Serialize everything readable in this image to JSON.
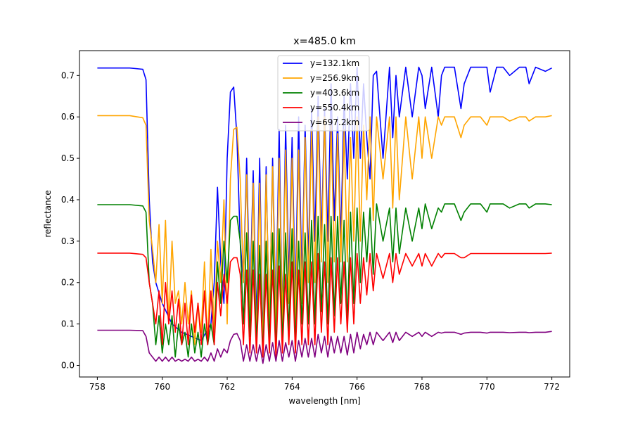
{
  "chart_data": {
    "type": "line",
    "title": "x=485.0 km",
    "xlabel": "wavelength [nm]",
    "ylabel": "reflectance",
    "xlim": [
      757.45,
      772.55
    ],
    "ylim": [
      -0.028,
      0.76
    ],
    "xticks": [
      758,
      760,
      762,
      764,
      766,
      768,
      770,
      772
    ],
    "yticks": [
      0.0,
      0.1,
      0.2,
      0.3,
      0.4,
      0.5,
      0.6,
      0.7
    ],
    "xtick_labels": [
      "758",
      "760",
      "762",
      "764",
      "766",
      "768",
      "770",
      "772"
    ],
    "ytick_labels": [
      "0.0",
      "0.1",
      "0.2",
      "0.3",
      "0.4",
      "0.5",
      "0.6",
      "0.7"
    ],
    "grid": false,
    "legend_position": "top-center",
    "series": [
      {
        "name": "y=132.1km",
        "color": "#0000ff",
        "x": [
          758.0,
          759.0,
          759.4,
          759.5,
          759.6,
          759.7,
          759.8,
          760.0,
          760.3,
          760.6,
          760.9,
          761.2,
          761.5,
          761.6,
          761.7,
          761.8,
          761.9,
          762.0,
          762.1,
          762.2,
          762.3,
          762.4,
          762.5,
          762.6,
          762.7,
          762.8,
          762.9,
          763.0,
          763.1,
          763.2,
          763.3,
          763.4,
          763.5,
          763.6,
          763.7,
          763.8,
          763.9,
          764.0,
          764.1,
          764.2,
          764.3,
          764.4,
          764.5,
          764.6,
          764.7,
          764.8,
          764.9,
          765.0,
          765.1,
          765.2,
          765.3,
          765.4,
          765.5,
          765.6,
          765.7,
          765.8,
          765.9,
          766.0,
          766.1,
          766.2,
          766.3,
          766.4,
          766.5,
          766.6,
          766.8,
          767.0,
          767.1,
          767.2,
          767.3,
          767.5,
          767.7,
          767.9,
          768.0,
          768.1,
          768.3,
          768.5,
          768.6,
          768.7,
          769.0,
          769.2,
          769.3,
          769.5,
          769.8,
          770.0,
          770.1,
          770.3,
          770.5,
          770.7,
          771.0,
          771.2,
          771.3,
          771.5,
          771.8,
          772.0
        ],
        "values": [
          0.718,
          0.718,
          0.715,
          0.69,
          0.4,
          0.25,
          0.2,
          0.15,
          0.1,
          0.08,
          0.07,
          0.06,
          0.1,
          0.2,
          0.43,
          0.25,
          0.15,
          0.5,
          0.66,
          0.672,
          0.55,
          0.3,
          0.2,
          0.5,
          0.15,
          0.47,
          0.1,
          0.5,
          0.05,
          0.48,
          0.08,
          0.5,
          0.12,
          0.57,
          0.1,
          0.58,
          0.2,
          0.55,
          0.15,
          0.6,
          0.2,
          0.58,
          0.25,
          0.62,
          0.3,
          0.65,
          0.3,
          0.62,
          0.3,
          0.68,
          0.35,
          0.6,
          0.3,
          0.65,
          0.45,
          0.68,
          0.5,
          0.72,
          0.5,
          0.68,
          0.55,
          0.45,
          0.7,
          0.71,
          0.5,
          0.72,
          0.55,
          0.7,
          0.6,
          0.72,
          0.6,
          0.72,
          0.7,
          0.62,
          0.72,
          0.6,
          0.7,
          0.72,
          0.72,
          0.62,
          0.68,
          0.72,
          0.72,
          0.72,
          0.66,
          0.72,
          0.72,
          0.7,
          0.72,
          0.72,
          0.68,
          0.72,
          0.71,
          0.718
        ]
      },
      {
        "name": "y=256.9km",
        "color": "#ffa500",
        "x": [
          758.0,
          759.0,
          759.4,
          759.5,
          759.6,
          759.7,
          759.8,
          759.9,
          760.0,
          760.1,
          760.2,
          760.3,
          760.4,
          760.5,
          760.6,
          760.7,
          760.8,
          760.9,
          761.0,
          761.1,
          761.2,
          761.3,
          761.4,
          761.5,
          761.6,
          761.7,
          761.8,
          761.9,
          762.0,
          762.1,
          762.2,
          762.3,
          762.4,
          762.5,
          762.6,
          762.7,
          762.8,
          762.9,
          763.0,
          763.1,
          763.2,
          763.3,
          763.4,
          763.5,
          763.6,
          763.7,
          763.8,
          763.9,
          764.0,
          764.1,
          764.2,
          764.3,
          764.4,
          764.5,
          764.6,
          764.7,
          764.8,
          764.9,
          765.0,
          765.1,
          765.2,
          765.3,
          765.4,
          765.5,
          765.6,
          765.7,
          765.8,
          765.9,
          766.0,
          766.1,
          766.2,
          766.3,
          766.4,
          766.5,
          766.6,
          766.8,
          767.0,
          767.1,
          767.2,
          767.3,
          767.5,
          767.7,
          767.9,
          768.0,
          768.1,
          768.3,
          768.5,
          768.6,
          768.7,
          769.0,
          769.2,
          769.3,
          769.5,
          769.8,
          770.0,
          770.1,
          770.3,
          770.5,
          770.7,
          771.0,
          771.2,
          771.3,
          771.5,
          771.8,
          772.0
        ],
        "values": [
          0.603,
          0.603,
          0.598,
          0.58,
          0.35,
          0.28,
          0.2,
          0.34,
          0.15,
          0.35,
          0.1,
          0.3,
          0.15,
          0.18,
          0.1,
          0.2,
          0.1,
          0.18,
          0.05,
          0.15,
          0.08,
          0.25,
          0.05,
          0.28,
          0.08,
          0.3,
          0.2,
          0.4,
          0.1,
          0.45,
          0.57,
          0.575,
          0.45,
          0.2,
          0.46,
          0.1,
          0.44,
          0.05,
          0.44,
          0.03,
          0.46,
          0.1,
          0.48,
          0.08,
          0.5,
          0.1,
          0.52,
          0.15,
          0.5,
          0.1,
          0.52,
          0.15,
          0.55,
          0.2,
          0.57,
          0.2,
          0.6,
          0.25,
          0.6,
          0.2,
          0.58,
          0.25,
          0.56,
          0.25,
          0.57,
          0.25,
          0.55,
          0.3,
          0.6,
          0.3,
          0.58,
          0.4,
          0.6,
          0.35,
          0.6,
          0.45,
          0.6,
          0.38,
          0.6,
          0.4,
          0.6,
          0.45,
          0.6,
          0.5,
          0.6,
          0.5,
          0.6,
          0.58,
          0.6,
          0.6,
          0.55,
          0.58,
          0.6,
          0.6,
          0.58,
          0.6,
          0.6,
          0.6,
          0.59,
          0.6,
          0.6,
          0.59,
          0.6,
          0.6,
          0.603
        ]
      },
      {
        "name": "y=403.6km",
        "color": "#008000",
        "x": [
          758.0,
          759.0,
          759.4,
          759.5,
          759.6,
          759.7,
          759.8,
          759.9,
          760.0,
          760.1,
          760.2,
          760.3,
          760.4,
          760.5,
          760.6,
          760.7,
          760.8,
          760.9,
          761.0,
          761.1,
          761.2,
          761.3,
          761.4,
          761.5,
          761.6,
          761.7,
          761.8,
          761.9,
          762.0,
          762.1,
          762.2,
          762.3,
          762.4,
          762.5,
          762.6,
          762.7,
          762.8,
          762.9,
          763.0,
          763.1,
          763.2,
          763.3,
          763.4,
          763.5,
          763.6,
          763.7,
          763.8,
          763.9,
          764.0,
          764.1,
          764.2,
          764.3,
          764.4,
          764.5,
          764.6,
          764.7,
          764.8,
          764.9,
          765.0,
          765.1,
          765.2,
          765.3,
          765.4,
          765.5,
          765.6,
          765.7,
          765.8,
          765.9,
          766.0,
          766.1,
          766.2,
          766.3,
          766.4,
          766.5,
          766.6,
          766.8,
          767.0,
          767.1,
          767.2,
          767.3,
          767.5,
          767.7,
          767.9,
          768.0,
          768.1,
          768.3,
          768.5,
          768.6,
          768.7,
          769.0,
          769.2,
          769.3,
          769.5,
          769.8,
          770.0,
          770.1,
          770.3,
          770.5,
          770.7,
          771.0,
          771.2,
          771.3,
          771.5,
          771.8,
          772.0
        ],
        "values": [
          0.388,
          0.388,
          0.385,
          0.37,
          0.2,
          0.15,
          0.05,
          0.12,
          0.03,
          0.1,
          0.05,
          0.12,
          0.02,
          0.1,
          0.05,
          0.08,
          0.02,
          0.1,
          0.03,
          0.08,
          0.02,
          0.1,
          0.05,
          0.1,
          0.05,
          0.25,
          0.15,
          0.3,
          0.2,
          0.35,
          0.36,
          0.36,
          0.3,
          0.1,
          0.32,
          0.07,
          0.3,
          0.05,
          0.29,
          0.02,
          0.3,
          0.05,
          0.32,
          0.03,
          0.33,
          0.05,
          0.32,
          0.08,
          0.33,
          0.05,
          0.3,
          0.1,
          0.32,
          0.1,
          0.35,
          0.1,
          0.36,
          0.13,
          0.34,
          0.1,
          0.36,
          0.12,
          0.36,
          0.15,
          0.35,
          0.1,
          0.37,
          0.15,
          0.38,
          0.2,
          0.37,
          0.25,
          0.38,
          0.22,
          0.39,
          0.3,
          0.38,
          0.25,
          0.38,
          0.27,
          0.38,
          0.3,
          0.38,
          0.33,
          0.39,
          0.33,
          0.38,
          0.37,
          0.39,
          0.39,
          0.35,
          0.37,
          0.39,
          0.39,
          0.37,
          0.39,
          0.39,
          0.39,
          0.38,
          0.39,
          0.39,
          0.38,
          0.39,
          0.39,
          0.388
        ]
      },
      {
        "name": "y=550.4km",
        "color": "#ff0000",
        "x": [
          758.0,
          759.0,
          759.4,
          759.5,
          759.6,
          759.7,
          759.8,
          759.9,
          760.0,
          760.1,
          760.2,
          760.3,
          760.4,
          760.5,
          760.6,
          760.7,
          760.8,
          760.9,
          761.0,
          761.1,
          761.2,
          761.3,
          761.4,
          761.5,
          761.6,
          761.7,
          761.8,
          761.9,
          762.0,
          762.1,
          762.2,
          762.3,
          762.4,
          762.5,
          762.6,
          762.7,
          762.8,
          762.9,
          763.0,
          763.1,
          763.2,
          763.3,
          763.4,
          763.5,
          763.6,
          763.7,
          763.8,
          763.9,
          764.0,
          764.1,
          764.2,
          764.3,
          764.4,
          764.5,
          764.6,
          764.7,
          764.8,
          764.9,
          765.0,
          765.1,
          765.2,
          765.3,
          765.4,
          765.5,
          765.6,
          765.7,
          765.8,
          765.9,
          766.0,
          766.1,
          766.2,
          766.3,
          766.4,
          766.5,
          766.6,
          766.8,
          767.0,
          767.1,
          767.2,
          767.3,
          767.5,
          767.7,
          767.9,
          768.0,
          768.1,
          768.3,
          768.5,
          768.6,
          768.7,
          769.0,
          769.2,
          769.3,
          769.5,
          769.8,
          770.0,
          770.1,
          770.3,
          770.5,
          770.7,
          771.0,
          771.2,
          771.3,
          771.5,
          771.8,
          772.0
        ],
        "values": [
          0.271,
          0.271,
          0.268,
          0.26,
          0.2,
          0.15,
          0.1,
          0.18,
          0.05,
          0.2,
          0.1,
          0.18,
          0.08,
          0.16,
          0.05,
          0.15,
          0.05,
          0.17,
          0.08,
          0.15,
          0.05,
          0.18,
          0.05,
          0.18,
          0.05,
          0.2,
          0.12,
          0.22,
          0.15,
          0.25,
          0.26,
          0.26,
          0.22,
          0.05,
          0.23,
          0.03,
          0.23,
          0.03,
          0.22,
          0.02,
          0.22,
          0.03,
          0.23,
          0.02,
          0.24,
          0.03,
          0.22,
          0.05,
          0.25,
          0.03,
          0.23,
          0.05,
          0.25,
          0.05,
          0.25,
          0.05,
          0.27,
          0.08,
          0.25,
          0.05,
          0.26,
          0.08,
          0.26,
          0.1,
          0.25,
          0.08,
          0.26,
          0.1,
          0.27,
          0.15,
          0.26,
          0.17,
          0.27,
          0.18,
          0.27,
          0.21,
          0.27,
          0.2,
          0.27,
          0.22,
          0.27,
          0.24,
          0.27,
          0.24,
          0.27,
          0.24,
          0.27,
          0.26,
          0.27,
          0.27,
          0.26,
          0.26,
          0.27,
          0.27,
          0.27,
          0.27,
          0.27,
          0.27,
          0.27,
          0.27,
          0.27,
          0.27,
          0.27,
          0.27,
          0.271
        ]
      },
      {
        "name": "y=697.2km",
        "color": "#800080",
        "x": [
          758.0,
          759.0,
          759.4,
          759.5,
          759.6,
          759.7,
          759.8,
          759.9,
          760.0,
          760.1,
          760.2,
          760.3,
          760.4,
          760.5,
          760.6,
          760.7,
          760.8,
          760.9,
          761.0,
          761.1,
          761.2,
          761.3,
          761.4,
          761.5,
          761.6,
          761.7,
          761.8,
          761.9,
          762.0,
          762.1,
          762.2,
          762.3,
          762.4,
          762.5,
          762.6,
          762.7,
          762.8,
          762.9,
          763.0,
          763.1,
          763.2,
          763.3,
          763.4,
          763.5,
          763.6,
          763.7,
          763.8,
          763.9,
          764.0,
          764.1,
          764.2,
          764.3,
          764.4,
          764.5,
          764.6,
          764.7,
          764.8,
          764.9,
          765.0,
          765.1,
          765.2,
          765.3,
          765.4,
          765.5,
          765.6,
          765.7,
          765.8,
          765.9,
          766.0,
          766.1,
          766.2,
          766.3,
          766.4,
          766.5,
          766.6,
          766.8,
          767.0,
          767.1,
          767.2,
          767.3,
          767.5,
          767.7,
          767.9,
          768.0,
          768.1,
          768.3,
          768.5,
          768.6,
          768.7,
          769.0,
          769.2,
          769.3,
          769.5,
          769.8,
          770.0,
          770.1,
          770.3,
          770.5,
          770.7,
          771.0,
          771.2,
          771.3,
          771.5,
          771.8,
          772.0
        ],
        "values": [
          0.085,
          0.085,
          0.084,
          0.07,
          0.03,
          0.02,
          0.01,
          0.02,
          0.01,
          0.02,
          0.01,
          0.02,
          0.01,
          0.015,
          0.01,
          0.015,
          0.01,
          0.02,
          0.01,
          0.015,
          0.01,
          0.02,
          0.01,
          0.03,
          0.01,
          0.04,
          0.02,
          0.04,
          0.03,
          0.06,
          0.075,
          0.077,
          0.06,
          0.01,
          0.05,
          0.01,
          0.05,
          0.01,
          0.05,
          0.005,
          0.05,
          0.01,
          0.055,
          0.01,
          0.06,
          0.01,
          0.055,
          0.02,
          0.06,
          0.01,
          0.06,
          0.02,
          0.065,
          0.02,
          0.065,
          0.02,
          0.075,
          0.03,
          0.07,
          0.02,
          0.07,
          0.03,
          0.07,
          0.03,
          0.07,
          0.025,
          0.075,
          0.03,
          0.08,
          0.04,
          0.075,
          0.05,
          0.08,
          0.05,
          0.08,
          0.06,
          0.08,
          0.055,
          0.08,
          0.06,
          0.08,
          0.07,
          0.08,
          0.07,
          0.08,
          0.07,
          0.08,
          0.078,
          0.08,
          0.08,
          0.075,
          0.078,
          0.08,
          0.08,
          0.078,
          0.08,
          0.08,
          0.08,
          0.079,
          0.08,
          0.08,
          0.079,
          0.08,
          0.08,
          0.082
        ]
      }
    ]
  }
}
